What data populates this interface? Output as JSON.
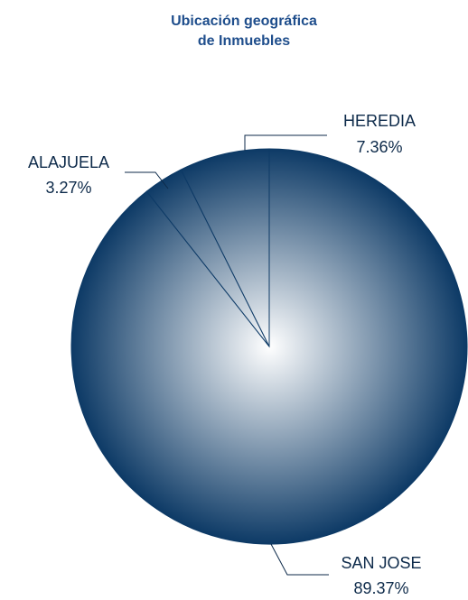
{
  "chart_data": {
    "type": "pie",
    "title": [
      "Ubicación geográfica",
      "de Inmuebles"
    ],
    "categories": [
      "SAN JOSE",
      "ALAJUELA",
      "HEREDIA"
    ],
    "values": [
      89.37,
      3.27,
      7.36
    ],
    "value_labels": [
      "89.37%",
      "3.27%",
      "7.36%"
    ],
    "color": "#0d3a66"
  }
}
